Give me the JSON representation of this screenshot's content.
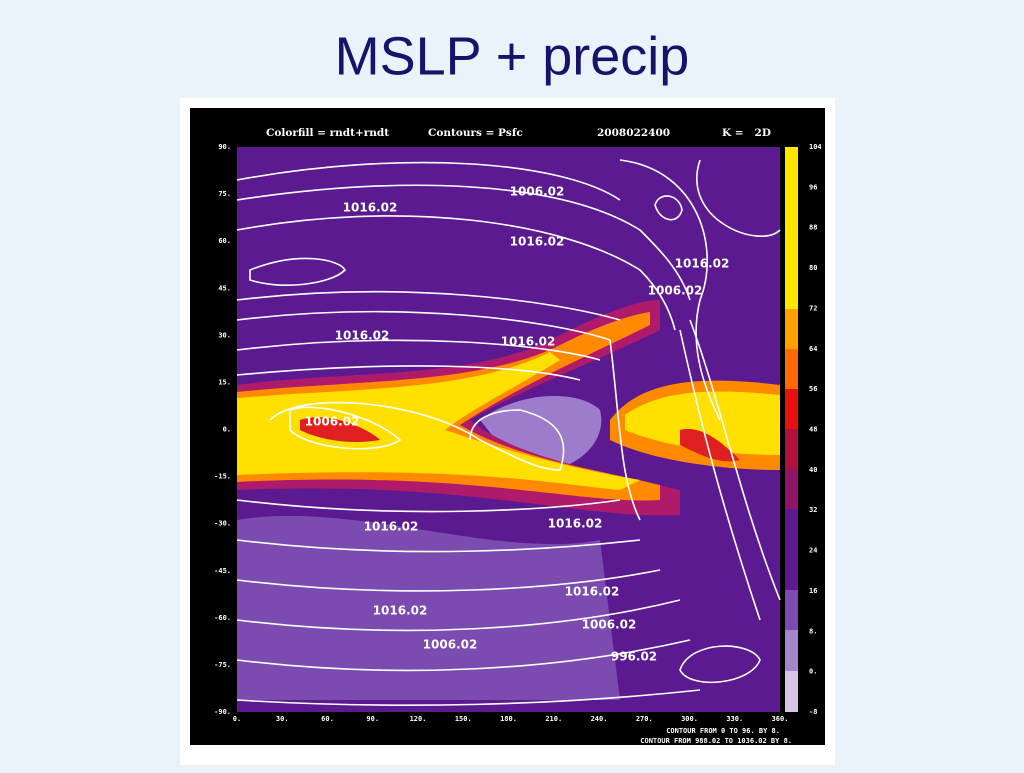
{
  "slide": {
    "title": "MSLP + precip"
  },
  "figure": {
    "header": {
      "colorfill": "Colorfill = rndt+rndt",
      "contours": "Contours = Psfc",
      "date": "2008022400",
      "level": "K =   2D"
    },
    "y_ticks": [
      "90.",
      "75.",
      "60.",
      "45.",
      "30.",
      "15.",
      "0.",
      "-15.",
      "-30.",
      "-45.",
      "-60.",
      "-75.",
      "-90."
    ],
    "x_ticks": [
      "0.",
      "30.",
      "60.",
      "90.",
      "120.",
      "150.",
      "180.",
      "210.",
      "240.",
      "270.",
      "300.",
      "330.",
      "360."
    ],
    "colorbar_labels": [
      "104",
      "96",
      "88",
      "80",
      "72",
      "64",
      "56",
      "48",
      "40",
      "32",
      "24",
      "16",
      "8.",
      "0.",
      "-8"
    ],
    "contour_labels": [
      "1006.02",
      "1016.02",
      "1016.02",
      "1016.02",
      "1006.02",
      "1016.02",
      "1016.02",
      "1006.02",
      "1016.02",
      "1016.02",
      "1016.02",
      "1016.02",
      "1006.02",
      "1006.02",
      "996.02"
    ],
    "footer": [
      "CONTOUR FROM 0 TO 96. BY 8.",
      "CONTOUR FROM 988.02 TO 1036.02 BY 8."
    ]
  }
}
